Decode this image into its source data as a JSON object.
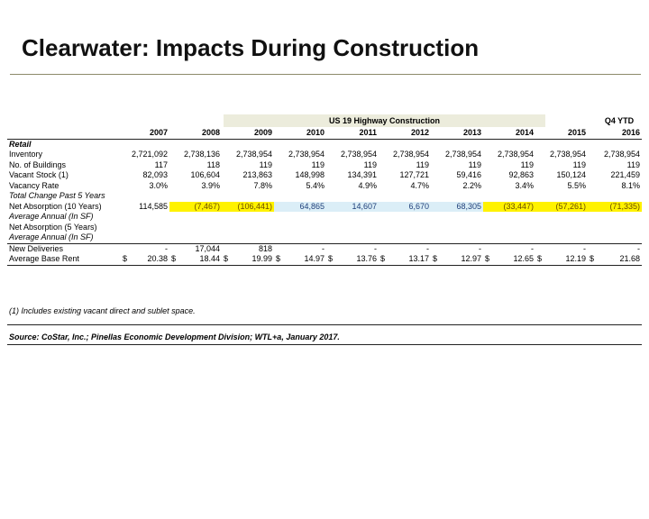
{
  "title": "Clearwater: Impacts During Construction",
  "header": {
    "band_label": "US 19 Highway Construction",
    "q4_label": "Q4 YTD"
  },
  "columns": [
    "2007",
    "2008",
    "2009",
    "2010",
    "2011",
    "2012",
    "2013",
    "2014",
    "2015",
    "2016"
  ],
  "section_label": "Retail",
  "rows": {
    "inventory": {
      "label": "Inventory",
      "values": [
        "2,721,092",
        "2,738,136",
        "2,738,954",
        "2,738,954",
        "2,738,954",
        "2,738,954",
        "2,738,954",
        "2,738,954",
        "2,738,954",
        "2,738,954"
      ]
    },
    "buildings": {
      "label": "No. of Buildings",
      "values": [
        "117",
        "118",
        "119",
        "119",
        "119",
        "119",
        "119",
        "119",
        "119",
        "119"
      ]
    },
    "vacant": {
      "label": "Vacant Stock (1)",
      "values": [
        "82,093",
        "106,604",
        "213,863",
        "148,998",
        "134,391",
        "127,721",
        "59,416",
        "92,863",
        "150,124",
        "221,459"
      ]
    },
    "vacancy": {
      "label": "Vacancy Rate",
      "values": [
        "3.0%",
        "3.9%",
        "7.8%",
        "5.4%",
        "4.9%",
        "4.7%",
        "2.2%",
        "3.4%",
        "5.5%",
        "8.1%"
      ]
    },
    "total_change": {
      "label": "Total Change Past 5 Years"
    },
    "net_abs_10": {
      "label": "Net Absorption (10 Years)",
      "values": [
        "114,585",
        "(7,467)",
        "(106,441)",
        "64,865",
        "14,607",
        "6,670",
        "68,305",
        "(33,447)",
        "(57,261)",
        "(71,335)"
      ]
    },
    "avg_annual_1": {
      "label": "Average Annual (In SF)"
    },
    "net_abs_5": {
      "label": "Net Absorption (5 Years)"
    },
    "avg_annual_2": {
      "label": "Average Annual (In SF)"
    },
    "new_deliveries": {
      "label": "New Deliveries",
      "values": [
        "-",
        "17,044",
        "818",
        "-",
        "-",
        "-",
        "-",
        "-",
        "-",
        "-"
      ]
    },
    "avg_rent": {
      "label": "Average Base Rent",
      "currency": "$",
      "values": [
        "20.38",
        "18.44",
        "19.99",
        "14.97",
        "13.76",
        "13.17",
        "12.97",
        "12.65",
        "12.19",
        "21.68"
      ]
    }
  },
  "footnote": "(1) Includes existing vacant direct and sublet space.",
  "source": "Source: CoStar, Inc.; Pinellas Economic Development Division; WTL+a, January 2017.",
  "colors": {
    "highlight_negative": "#fff200",
    "highlight_positive": "#dbeef7",
    "band": "#ececdc"
  }
}
